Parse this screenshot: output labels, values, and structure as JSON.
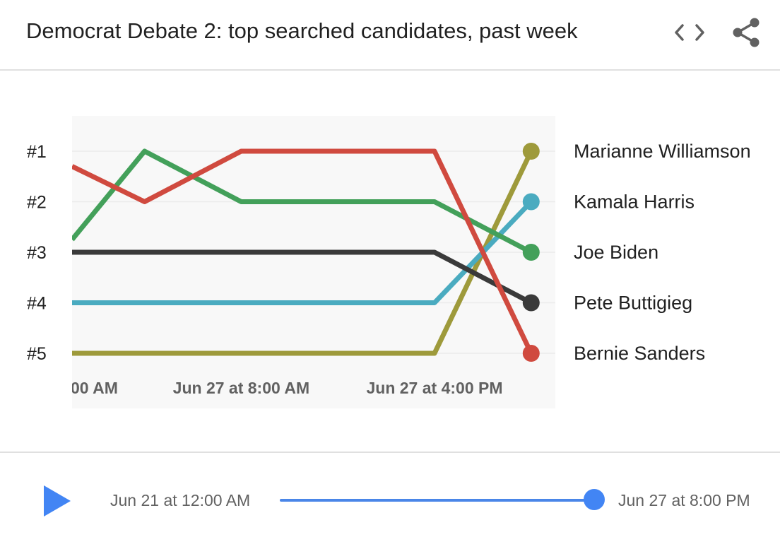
{
  "header": {
    "title": "Democrat Debate 2: top searched candidates, past week",
    "embed_icon": "code-embed-icon",
    "share_icon": "share-icon"
  },
  "chart_data": {
    "type": "line",
    "title": "Democrat Debate 2: top searched candidates, past week",
    "y_tick_labels": [
      "#1",
      "#2",
      "#3",
      "#4",
      "#5"
    ],
    "y_inverted": true,
    "ylim": [
      1,
      5
    ],
    "x_tick_labels": [
      "00 AM",
      "Jun 27 at 8:00 AM",
      "Jun 27 at 4:00 PM"
    ],
    "x_steps": 10,
    "x_tick_positions": [
      1.5,
      3.5,
      7.5
    ],
    "x": [
      0,
      1.5,
      3.5,
      7.5,
      9.5
    ],
    "series": [
      {
        "name": "Marianne Williamson",
        "color": "#9e9a3b",
        "values": [
          5,
          5,
          5,
          5,
          1
        ]
      },
      {
        "name": "Kamala Harris",
        "color": "#4aabc0",
        "values": [
          4,
          4,
          4,
          4,
          2
        ]
      },
      {
        "name": "Joe Biden",
        "color": "#43a05a",
        "values": [
          2.75,
          1,
          2,
          2,
          3
        ]
      },
      {
        "name": "Pete Buttigieg",
        "color": "#3a3a3a",
        "values": [
          3,
          3,
          3,
          3,
          4
        ]
      },
      {
        "name": "Bernie Sanders",
        "color": "#d04a3f",
        "values": [
          1.3,
          2,
          1,
          1,
          5
        ]
      }
    ]
  },
  "timeline": {
    "start_label": "Jun 21 at 12:00 AM",
    "end_label": "Jun 27 at 8:00 PM",
    "progress": 1.0,
    "accent": "#4285f4",
    "play_icon": "play-icon"
  }
}
